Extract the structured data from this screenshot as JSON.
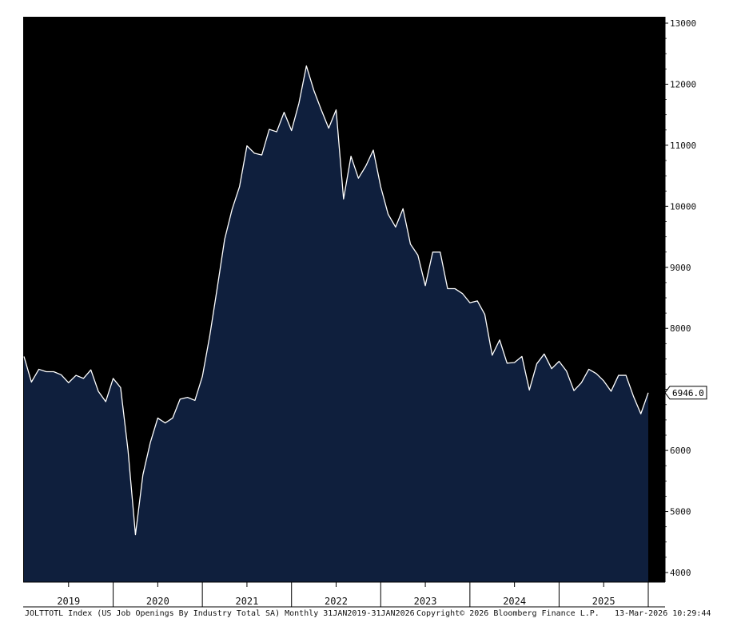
{
  "chart_data": {
    "type": "area",
    "title": "",
    "xlabel": "",
    "ylabel": "",
    "x_start": "2019-01",
    "x": [
      "2019-01",
      "2019-02",
      "2019-03",
      "2019-04",
      "2019-05",
      "2019-06",
      "2019-07",
      "2019-08",
      "2019-09",
      "2019-10",
      "2019-11",
      "2019-12",
      "2020-01",
      "2020-02",
      "2020-03",
      "2020-04",
      "2020-05",
      "2020-06",
      "2020-07",
      "2020-08",
      "2020-09",
      "2020-10",
      "2020-11",
      "2020-12",
      "2021-01",
      "2021-02",
      "2021-03",
      "2021-04",
      "2021-05",
      "2021-06",
      "2021-07",
      "2021-08",
      "2021-09",
      "2021-10",
      "2021-11",
      "2021-12",
      "2022-01",
      "2022-02",
      "2022-03",
      "2022-04",
      "2022-05",
      "2022-06",
      "2022-07",
      "2022-08",
      "2022-09",
      "2022-10",
      "2022-11",
      "2022-12",
      "2023-01",
      "2023-02",
      "2023-03",
      "2023-04",
      "2023-05",
      "2023-06",
      "2023-07",
      "2023-08",
      "2023-09",
      "2023-10",
      "2023-11",
      "2023-12",
      "2024-01",
      "2024-02",
      "2024-03",
      "2024-04",
      "2024-05",
      "2024-06",
      "2024-07",
      "2024-08",
      "2024-09",
      "2024-10",
      "2024-11",
      "2024-12",
      "2025-01",
      "2025-02",
      "2025-03",
      "2025-04",
      "2025-05",
      "2025-06",
      "2025-07",
      "2025-08",
      "2025-09",
      "2025-10",
      "2025-11",
      "2025-12",
      "2026-01"
    ],
    "series": [
      {
        "name": "JOLTTOTL Index",
        "color": "#ffffff",
        "fill": "#0f1f3d",
        "values": [
          7540,
          7120,
          7330,
          7290,
          7290,
          7240,
          7110,
          7230,
          7180,
          7320,
          6970,
          6800,
          7180,
          7030,
          6000,
          4620,
          5600,
          6130,
          6530,
          6450,
          6530,
          6840,
          6870,
          6820,
          7210,
          7880,
          8660,
          9460,
          9950,
          10320,
          10990,
          10870,
          10840,
          11260,
          11220,
          11540,
          11240,
          11690,
          12300,
          11900,
          11580,
          11280,
          11580,
          10120,
          10820,
          10460,
          10660,
          10920,
          10320,
          9870,
          9660,
          9960,
          9380,
          9200,
          8700,
          9250,
          9250,
          8650,
          8650,
          8570,
          8420,
          8450,
          8230,
          7560,
          7810,
          7430,
          7440,
          7540,
          6990,
          7420,
          7580,
          7340,
          7460,
          7300,
          6980,
          7110,
          7330,
          7260,
          7140,
          6970,
          7230,
          7230,
          6890,
          6600,
          6946
        ]
      }
    ],
    "ylim": [
      3850,
      13000
    ],
    "y_ticks": [
      4000,
      5000,
      6000,
      7000,
      8000,
      9000,
      10000,
      11000,
      12000,
      13000
    ],
    "y_tick_labels": [
      "4000",
      "5000",
      "6000",
      "",
      "8000",
      "9000",
      "10000",
      "11000",
      "12000",
      "13000"
    ],
    "x_ticks": [
      {
        "label": "2019",
        "year": 2019
      },
      {
        "label": "2020",
        "year": 2020
      },
      {
        "label": "2021",
        "year": 2021
      },
      {
        "label": "2022",
        "year": 2022
      },
      {
        "label": "2023",
        "year": 2023
      },
      {
        "label": "2024",
        "year": 2024
      },
      {
        "label": "2025",
        "year": 2025
      }
    ],
    "last_value_label": "6946.0",
    "last_value": 6946,
    "grid": false,
    "legend": "none",
    "background_color": "#000000"
  },
  "footer": {
    "description": "JOLTTOTL Index (US Job Openings By Industry Total SA) Monthly 31JAN2019-31JAN2026",
    "copyright": "Copyright© 2026 Bloomberg Finance L.P.",
    "timestamp": "13-Mar-2026 10:29:44"
  }
}
